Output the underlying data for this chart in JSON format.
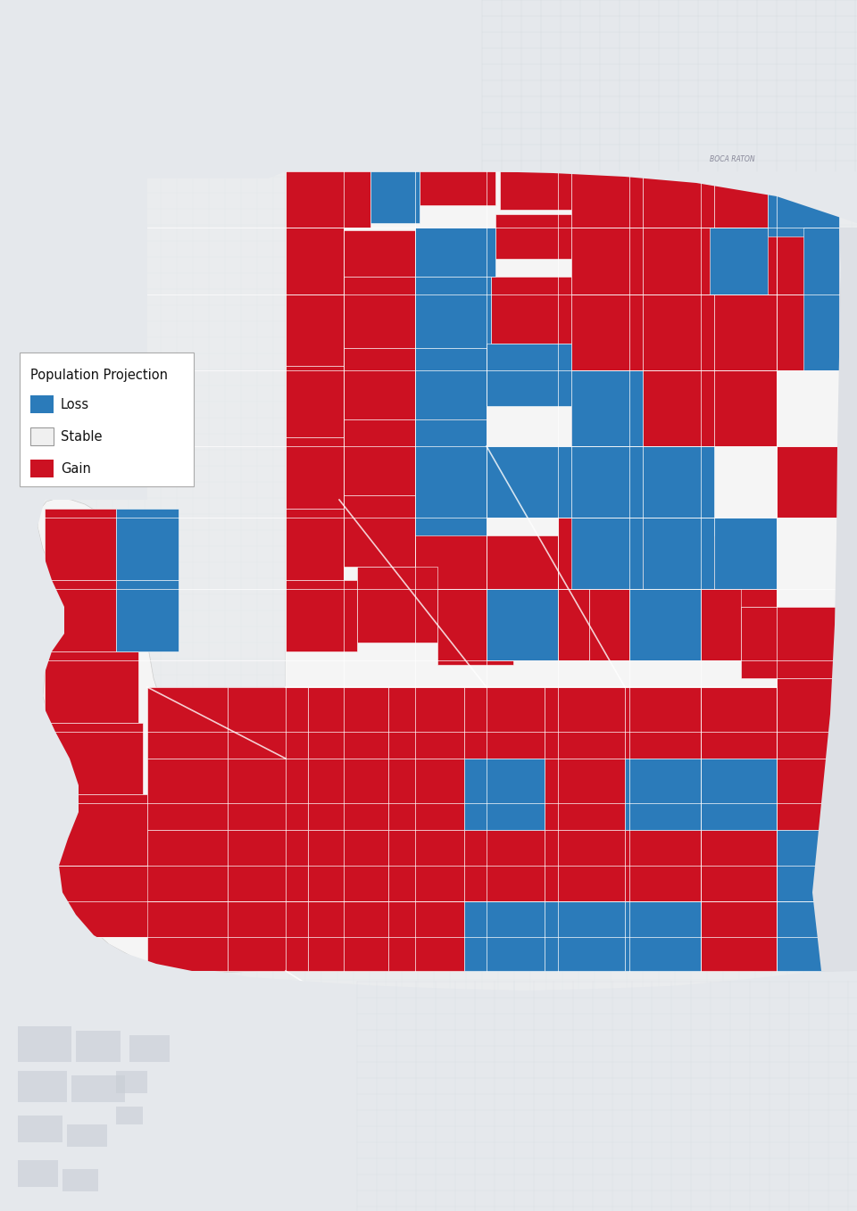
{
  "background_color": "#e8eaed",
  "legend_title": "Population Projection",
  "legend_items": [
    {
      "label": "Loss",
      "color": "#2b7bba"
    },
    {
      "label": "Stable",
      "color": "#f0f0f0"
    },
    {
      "label": "Gain",
      "color": "#cc1122"
    }
  ],
  "blue_color": "#2b7bba",
  "red_color": "#cc1122",
  "stable_color": "#f0f0f0",
  "fig_width": 9.6,
  "fig_height": 13.57,
  "map_light": "#e8eaed",
  "map_grid_color": "#d0d3d8",
  "county_bg": "#f5f5f5",
  "water_color": "#c5d5e5",
  "road_color": "#ffffff"
}
